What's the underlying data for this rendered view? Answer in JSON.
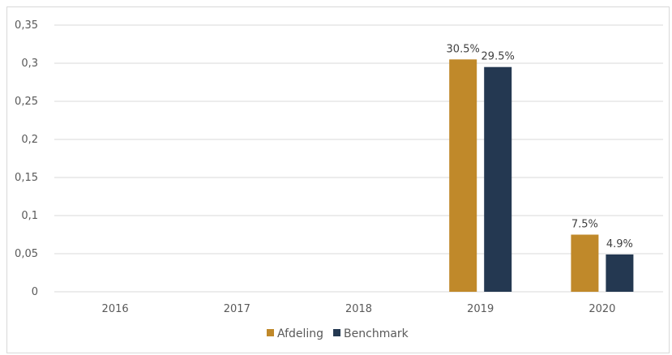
{
  "chart_data": {
    "type": "bar",
    "categories": [
      "2016",
      "2017",
      "2018",
      "2019",
      "2020"
    ],
    "series": [
      {
        "name": "Afdeling",
        "color": "#C0892A",
        "values": [
          null,
          null,
          null,
          0.305,
          0.075
        ],
        "labels": [
          "",
          "",
          "",
          "30.5%",
          "7.5%"
        ]
      },
      {
        "name": "Benchmark",
        "color": "#243851",
        "values": [
          null,
          null,
          null,
          0.295,
          0.049
        ],
        "labels": [
          "",
          "",
          "",
          "29.5%",
          "4.9%"
        ]
      }
    ],
    "yticks": [
      0,
      0.05,
      0.1,
      0.15,
      0.2,
      0.25,
      0.3,
      0.35
    ],
    "ytick_labels": [
      "0",
      "0,05",
      "0,1",
      "0,15",
      "0,2",
      "0,25",
      "0,3",
      "0,35"
    ],
    "ylim": [
      0,
      0.35
    ],
    "grid": true,
    "legend_position": "bottom"
  }
}
